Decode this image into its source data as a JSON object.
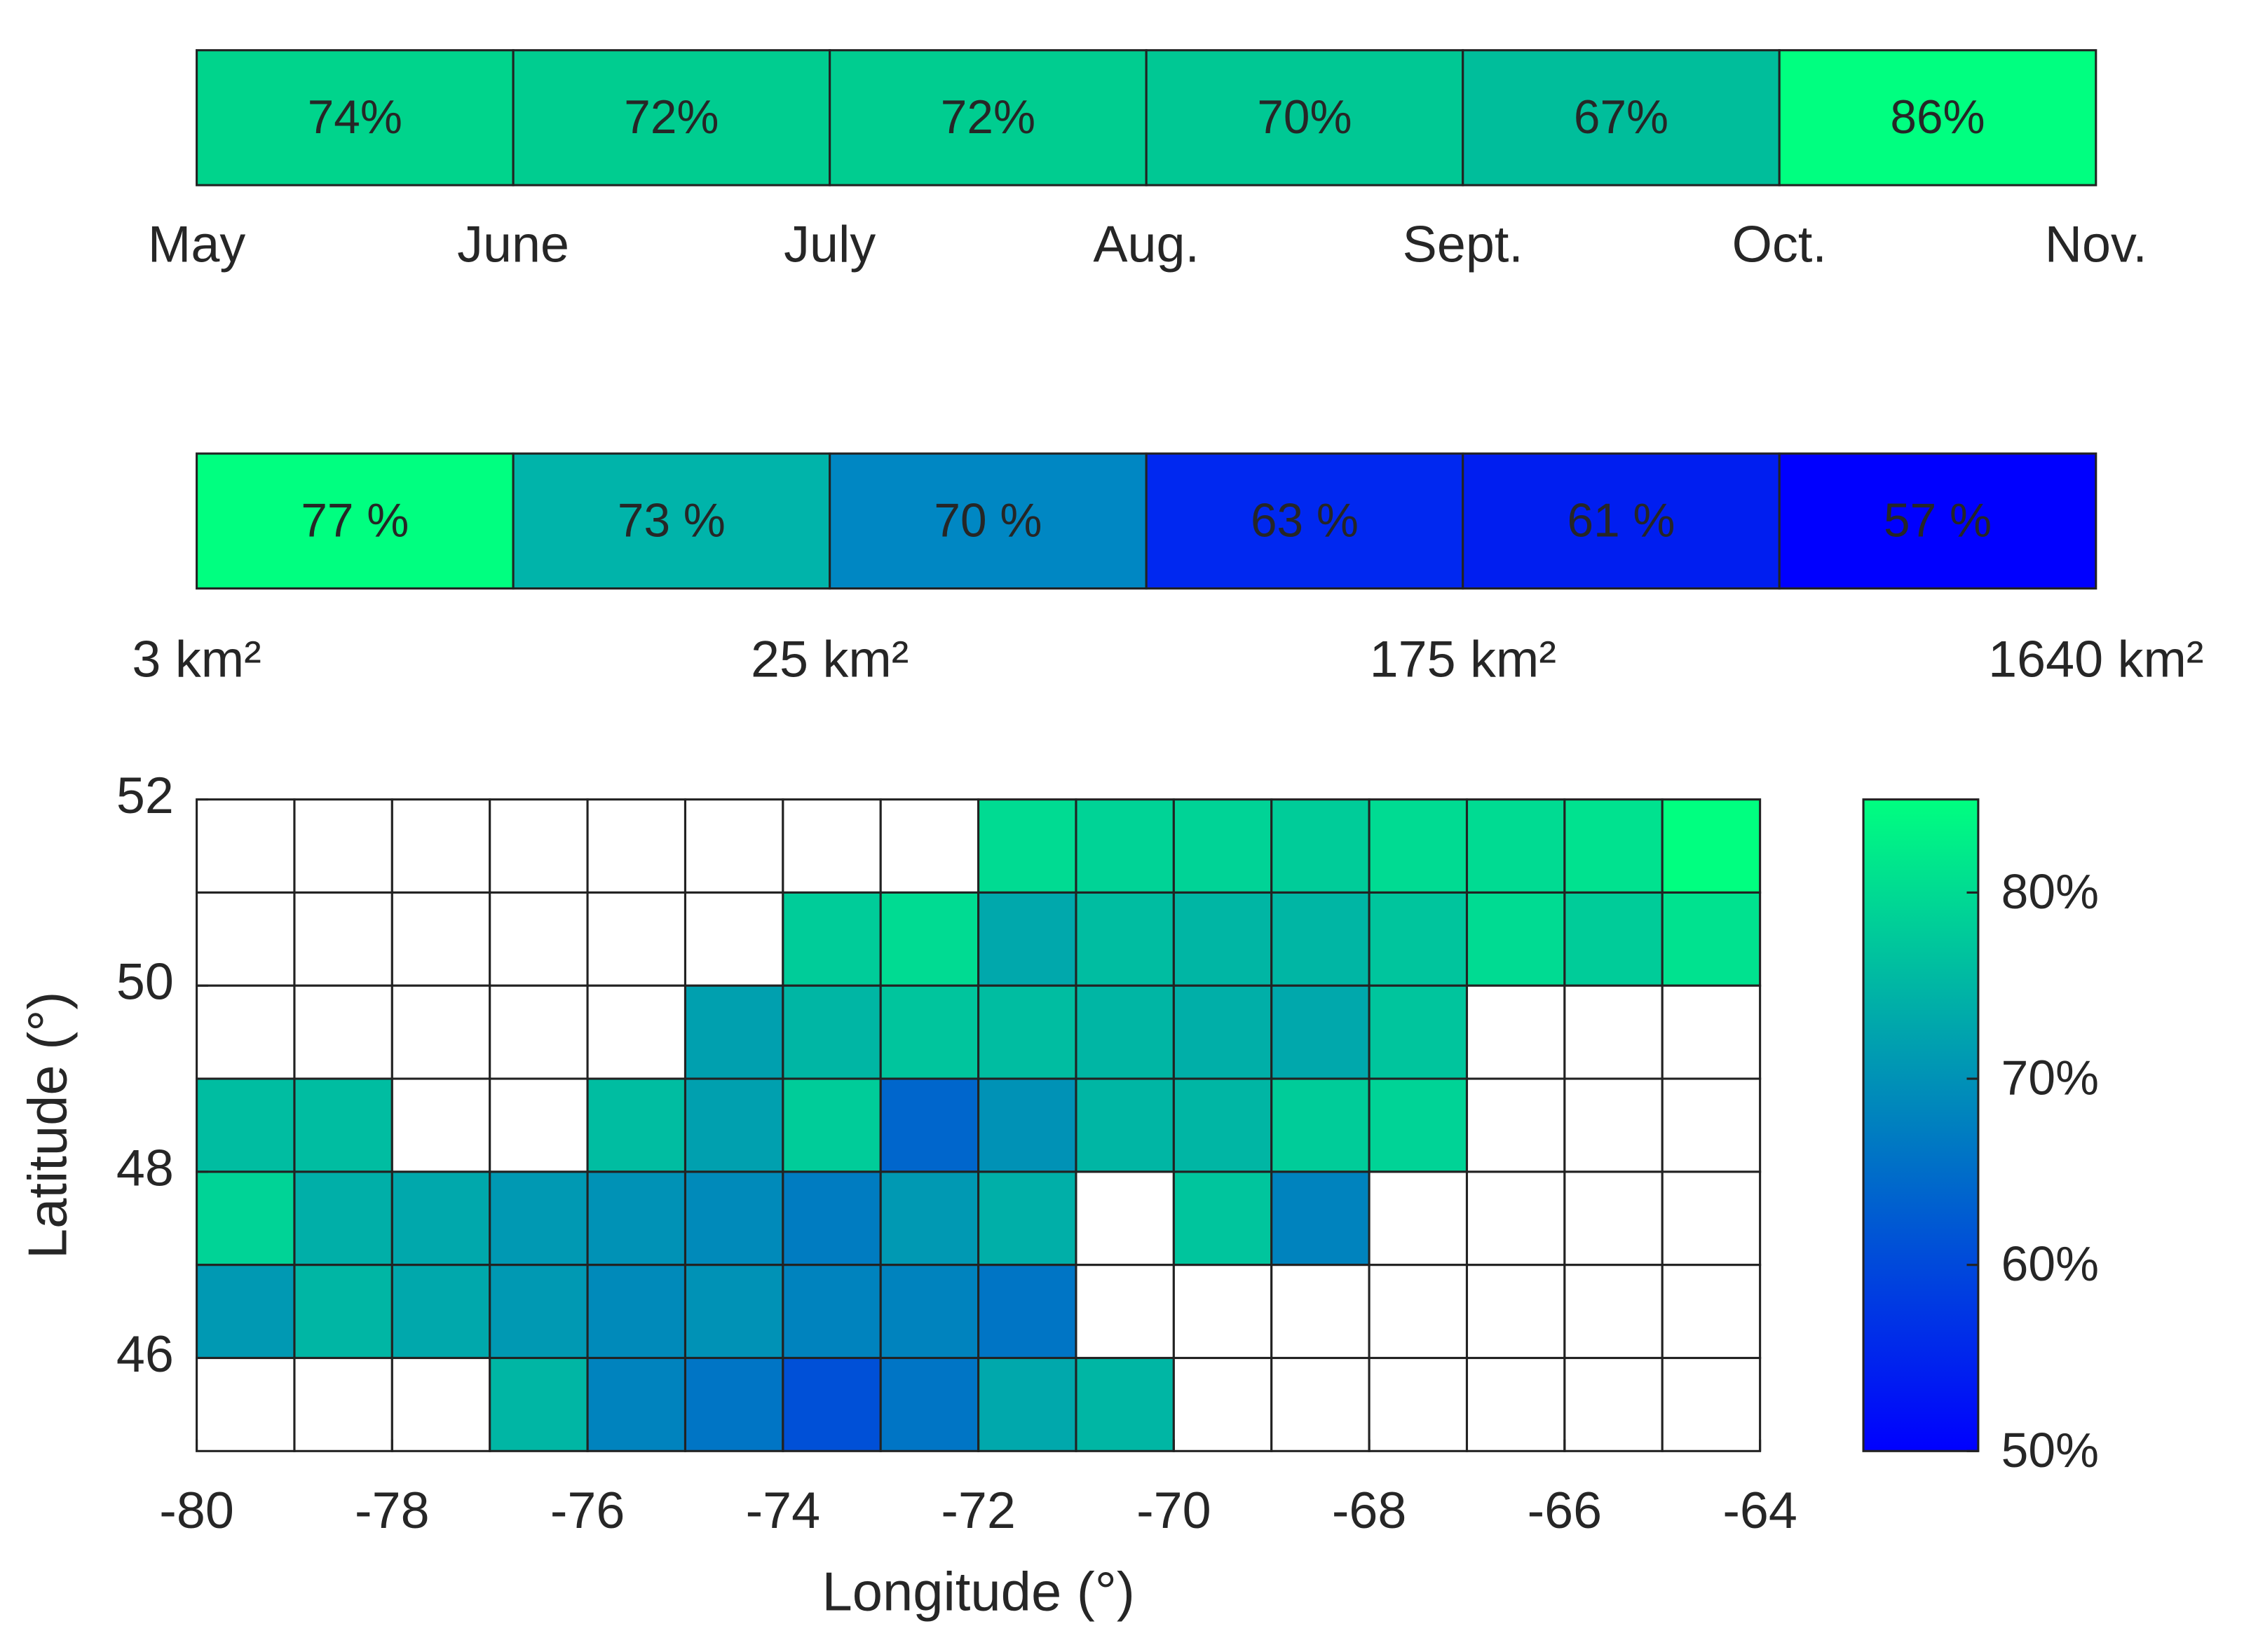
{
  "chart_data": [
    {
      "type": "strip",
      "edges": [
        "May",
        "June",
        "July",
        "Aug.",
        "Sept.",
        "Oct.",
        "Nov."
      ],
      "values": [
        74,
        72,
        72,
        70,
        67,
        86
      ],
      "value_labels": [
        "74%",
        "72%",
        "72%",
        "70%",
        "67%",
        "86%"
      ],
      "colors": [
        "#00d48c",
        "#00cd90",
        "#00cd90",
        "#00c894",
        "#00be9b",
        "#00ff80"
      ]
    },
    {
      "type": "strip",
      "edges": [
        "3 km²",
        null,
        "25 km²",
        null,
        "175 km²",
        null,
        "1640 km²"
      ],
      "values": [
        77,
        73,
        70,
        63,
        61,
        57
      ],
      "value_labels": [
        "77 %",
        "73 %",
        "70 %",
        "63 %",
        "61 %",
        "57 %"
      ],
      "colors": [
        "#00ff80",
        "#00b4aa",
        "#0087c3",
        "#0028f0",
        "#001ef0",
        "#0000ff"
      ]
    },
    {
      "type": "heatmap",
      "xlabel": "Longitude (°)",
      "ylabel": "Latitude (°)",
      "xlim": [
        -80,
        -64
      ],
      "xticks": [
        -80,
        -78,
        -76,
        -74,
        -72,
        -70,
        -68,
        -66,
        -64
      ],
      "ylim": [
        45,
        52
      ],
      "yticks": [
        46,
        48,
        50,
        52
      ],
      "values": [
        [
          null,
          null,
          null,
          null,
          null,
          null,
          null,
          null,
          80,
          79,
          79,
          78,
          80,
          80,
          81,
          85
        ],
        [
          null,
          null,
          null,
          null,
          null,
          null,
          78,
          80,
          73,
          76,
          75,
          75,
          77,
          80,
          78,
          81
        ],
        [
          null,
          null,
          null,
          null,
          null,
          72,
          75,
          77,
          76,
          75,
          74,
          73,
          77,
          null,
          null,
          null
        ],
        [
          76,
          76,
          null,
          null,
          76,
          72,
          78,
          64,
          70,
          75,
          75,
          78,
          79,
          null,
          null,
          null
        ],
        [
          79,
          74,
          73,
          71,
          70,
          69,
          67,
          71,
          74,
          null,
          77,
          68,
          null,
          null,
          null,
          null
        ],
        [
          71,
          75,
          73,
          71,
          69,
          70,
          68,
          68,
          66,
          null,
          null,
          null,
          null,
          null,
          null,
          null
        ],
        [
          null,
          null,
          null,
          75,
          68,
          66,
          61,
          66,
          73,
          75,
          null,
          null,
          null,
          null,
          null,
          null
        ]
      ],
      "colormap": [
        "#0000ff",
        "#00ff80"
      ],
      "clim": [
        50,
        85
      ],
      "cticks": [
        {
          "value": 50,
          "label": "50%"
        },
        {
          "value": 60,
          "label": "60%"
        },
        {
          "value": 70,
          "label": "70%"
        },
        {
          "value": 80,
          "label": "80%"
        }
      ]
    }
  ]
}
